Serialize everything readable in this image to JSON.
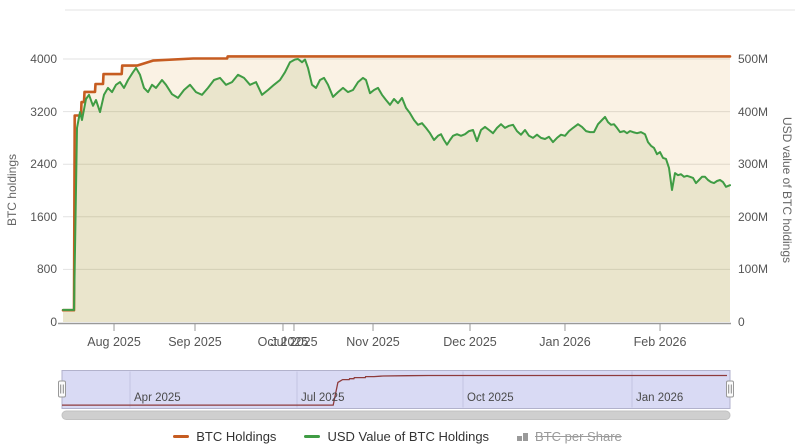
{
  "chart_data": {
    "type": "line",
    "x_axis": {
      "months": [
        {
          "label": "Aug 2025",
          "t": 0.0765
        },
        {
          "label": "Sep 2025",
          "t": 0.1979
        },
        {
          "label": "Jul 2025",
          "t": 0.3463,
          "ghost": true
        },
        {
          "label": "Oct 2025",
          "t": 0.3298
        },
        {
          "label": "Nov 2025",
          "t": 0.4648
        },
        {
          "label": "Dec 2025",
          "t": 0.6102
        },
        {
          "label": "Jan 2026",
          "t": 0.7526
        },
        {
          "label": "Feb 2026",
          "t": 0.8951
        }
      ]
    },
    "y_axis_left": {
      "title": "BTC holdings",
      "max": 4000,
      "ticks": [
        {
          "label": "4000",
          "v": 4000
        },
        {
          "label": "3200",
          "v": 3200
        },
        {
          "label": "2400",
          "v": 2400
        },
        {
          "label": "1600",
          "v": 1600
        },
        {
          "label": "800",
          "v": 800
        },
        {
          "label": "0",
          "v": 0
        }
      ]
    },
    "y_axis_right": {
      "title": "USD value of BTC holdings",
      "max": 500,
      "ticks": [
        {
          "label": "500M",
          "v": 500
        },
        {
          "label": "400M",
          "v": 400
        },
        {
          "label": "300M",
          "v": 300
        },
        {
          "label": "200M",
          "v": 200
        },
        {
          "label": "100M",
          "v": 100
        },
        {
          "label": "0",
          "v": 0
        }
      ]
    },
    "series": [
      {
        "name": "BTC Holdings",
        "axis": "left",
        "color": "#c65c21",
        "fill": "rgba(214,148,31,0.12)",
        "points": [
          [
            0,
            180
          ],
          [
            0.0165,
            180
          ],
          [
            0.0175,
            3140
          ],
          [
            0.027,
            3140
          ],
          [
            0.0278,
            3345
          ],
          [
            0.0315,
            3345
          ],
          [
            0.0322,
            3500
          ],
          [
            0.048,
            3500
          ],
          [
            0.0487,
            3620
          ],
          [
            0.06,
            3620
          ],
          [
            0.0607,
            3770
          ],
          [
            0.088,
            3770
          ],
          [
            0.0887,
            3900
          ],
          [
            0.111,
            3900
          ],
          [
            0.135,
            3975
          ],
          [
            0.195,
            4008
          ],
          [
            0.246,
            4008
          ],
          [
            0.247,
            4040
          ],
          [
            1,
            4040
          ]
        ]
      },
      {
        "name": "USD Value of BTC Holdings",
        "axis": "right",
        "color": "#3f9c44",
        "fill": "rgba(134,148,49,0.13)",
        "points": [
          [
            0,
            23
          ],
          [
            0.0165,
            23
          ],
          [
            0.021,
            369
          ],
          [
            0.0255,
            399
          ],
          [
            0.0285,
            384
          ],
          [
            0.0345,
            424
          ],
          [
            0.039,
            432
          ],
          [
            0.045,
            411
          ],
          [
            0.0495,
            422
          ],
          [
            0.0555,
            399
          ],
          [
            0.0615,
            432
          ],
          [
            0.0675,
            445
          ],
          [
            0.0735,
            437
          ],
          [
            0.0795,
            451
          ],
          [
            0.0854,
            456
          ],
          [
            0.0914,
            445
          ],
          [
            0.0974,
            460
          ],
          [
            0.1049,
            475
          ],
          [
            0.1094,
            483
          ],
          [
            0.1154,
            470
          ],
          [
            0.1214,
            445
          ],
          [
            0.1274,
            437
          ],
          [
            0.1334,
            451
          ],
          [
            0.1394,
            445
          ],
          [
            0.1484,
            460
          ],
          [
            0.1544,
            451
          ],
          [
            0.1634,
            433
          ],
          [
            0.1724,
            426
          ],
          [
            0.1814,
            441
          ],
          [
            0.1904,
            451
          ],
          [
            0.1994,
            437
          ],
          [
            0.2084,
            432
          ],
          [
            0.2174,
            445
          ],
          [
            0.2264,
            460
          ],
          [
            0.2354,
            464
          ],
          [
            0.2444,
            451
          ],
          [
            0.2534,
            456
          ],
          [
            0.2624,
            470
          ],
          [
            0.2714,
            464
          ],
          [
            0.2804,
            451
          ],
          [
            0.2894,
            456
          ],
          [
            0.2984,
            432
          ],
          [
            0.3073,
            441
          ],
          [
            0.3163,
            451
          ],
          [
            0.3253,
            460
          ],
          [
            0.3328,
            475
          ],
          [
            0.3403,
            494
          ],
          [
            0.3478,
            499
          ],
          [
            0.3523,
            500
          ],
          [
            0.3583,
            494
          ],
          [
            0.3628,
            499
          ],
          [
            0.3673,
            483
          ],
          [
            0.3733,
            451
          ],
          [
            0.3793,
            445
          ],
          [
            0.3853,
            460
          ],
          [
            0.3913,
            464
          ],
          [
            0.3973,
            451
          ],
          [
            0.4048,
            428
          ],
          [
            0.4123,
            437
          ],
          [
            0.4198,
            445
          ],
          [
            0.4273,
            437
          ],
          [
            0.4348,
            441
          ],
          [
            0.4423,
            456
          ],
          [
            0.4498,
            464
          ],
          [
            0.4543,
            460
          ],
          [
            0.4603,
            435
          ],
          [
            0.4663,
            441
          ],
          [
            0.4723,
            445
          ],
          [
            0.4783,
            432
          ],
          [
            0.4843,
            422
          ],
          [
            0.4903,
            413
          ],
          [
            0.4963,
            424
          ],
          [
            0.5022,
            416
          ],
          [
            0.5082,
            426
          ],
          [
            0.5142,
            407
          ],
          [
            0.5202,
            397
          ],
          [
            0.5262,
            384
          ],
          [
            0.5322,
            375
          ],
          [
            0.5382,
            378
          ],
          [
            0.5442,
            369
          ],
          [
            0.5502,
            359
          ],
          [
            0.5562,
            346
          ],
          [
            0.5622,
            354
          ],
          [
            0.5667,
            357
          ],
          [
            0.5712,
            346
          ],
          [
            0.5757,
            337
          ],
          [
            0.5802,
            346
          ],
          [
            0.5847,
            354
          ],
          [
            0.5907,
            357
          ],
          [
            0.5967,
            354
          ],
          [
            0.6027,
            357
          ],
          [
            0.6087,
            363
          ],
          [
            0.6147,
            365
          ],
          [
            0.6207,
            344
          ],
          [
            0.6267,
            365
          ],
          [
            0.6327,
            371
          ],
          [
            0.6387,
            365
          ],
          [
            0.6447,
            359
          ],
          [
            0.6507,
            369
          ],
          [
            0.6567,
            376
          ],
          [
            0.6627,
            369
          ],
          [
            0.6687,
            373
          ],
          [
            0.6747,
            375
          ],
          [
            0.6807,
            363
          ],
          [
            0.6867,
            356
          ],
          [
            0.6927,
            365
          ],
          [
            0.6987,
            354
          ],
          [
            0.7046,
            350
          ],
          [
            0.7106,
            356
          ],
          [
            0.7166,
            350
          ],
          [
            0.7226,
            348
          ],
          [
            0.7286,
            352
          ],
          [
            0.7346,
            342
          ],
          [
            0.7406,
            350
          ],
          [
            0.7466,
            356
          ],
          [
            0.7526,
            354
          ],
          [
            0.7586,
            363
          ],
          [
            0.7646,
            369
          ],
          [
            0.7721,
            376
          ],
          [
            0.7781,
            371
          ],
          [
            0.7841,
            363
          ],
          [
            0.7901,
            361
          ],
          [
            0.7961,
            361
          ],
          [
            0.8021,
            376
          ],
          [
            0.8081,
            384
          ],
          [
            0.8126,
            390
          ],
          [
            0.8171,
            380
          ],
          [
            0.8216,
            375
          ],
          [
            0.8261,
            376
          ],
          [
            0.8306,
            369
          ],
          [
            0.8351,
            361
          ],
          [
            0.8411,
            363
          ],
          [
            0.8456,
            359
          ],
          [
            0.8501,
            363
          ],
          [
            0.8546,
            361
          ],
          [
            0.8606,
            359
          ],
          [
            0.8666,
            361
          ],
          [
            0.8726,
            357
          ],
          [
            0.8771,
            342
          ],
          [
            0.8816,
            335
          ],
          [
            0.8861,
            331
          ],
          [
            0.8906,
            319
          ],
          [
            0.8951,
            323
          ],
          [
            0.8996,
            312
          ],
          [
            0.904,
            310
          ],
          [
            0.9085,
            293
          ],
          [
            0.913,
            251
          ],
          [
            0.9175,
            283
          ],
          [
            0.922,
            279
          ],
          [
            0.9265,
            281
          ],
          [
            0.931,
            276
          ],
          [
            0.9355,
            278
          ],
          [
            0.94,
            276
          ],
          [
            0.9445,
            274
          ],
          [
            0.949,
            264
          ],
          [
            0.9535,
            270
          ],
          [
            0.958,
            276
          ],
          [
            0.9625,
            276
          ],
          [
            0.967,
            270
          ],
          [
            0.9715,
            266
          ],
          [
            0.976,
            264
          ],
          [
            0.9805,
            268
          ],
          [
            0.985,
            270
          ],
          [
            0.9895,
            266
          ],
          [
            0.994,
            257
          ],
          [
            1,
            260
          ]
        ]
      },
      {
        "name": "BTC per Share",
        "axis": "none",
        "color": "#9a9a9a",
        "disabled": true,
        "points": []
      }
    ],
    "navigator": {
      "max": 4300,
      "line_color": "#8e3b3c",
      "bg_color": "#d9daf4",
      "labels": [
        {
          "label": "Apr 2025",
          "t": 0.1018
        },
        {
          "label": "Jul 2025",
          "t": 0.3518
        },
        {
          "label": "Oct 2025",
          "t": 0.6003
        },
        {
          "label": "Jan 2026",
          "t": 0.8533
        }
      ],
      "points": [
        [
          0,
          180
        ],
        [
          0.406,
          180
        ],
        [
          0.413,
          3140
        ],
        [
          0.417,
          3345
        ],
        [
          0.42,
          3500
        ],
        [
          0.43,
          3500
        ],
        [
          0.4305,
          3620
        ],
        [
          0.437,
          3620
        ],
        [
          0.4375,
          3770
        ],
        [
          0.454,
          3770
        ],
        [
          0.4545,
          3900
        ],
        [
          0.467,
          3900
        ],
        [
          0.481,
          3975
        ],
        [
          0.517,
          4008
        ],
        [
          0.548,
          4040
        ],
        [
          0.9955,
          4040
        ]
      ]
    },
    "legend": [
      {
        "label": "BTC Holdings",
        "marker": "line",
        "color": "#c65c21",
        "disabled": false
      },
      {
        "label": "USD Value of BTC Holdings",
        "marker": "line",
        "color": "#3f9c44",
        "disabled": false
      },
      {
        "label": "BTC per Share",
        "marker": "bars",
        "color": "#9a9a9a",
        "disabled": true
      }
    ]
  }
}
